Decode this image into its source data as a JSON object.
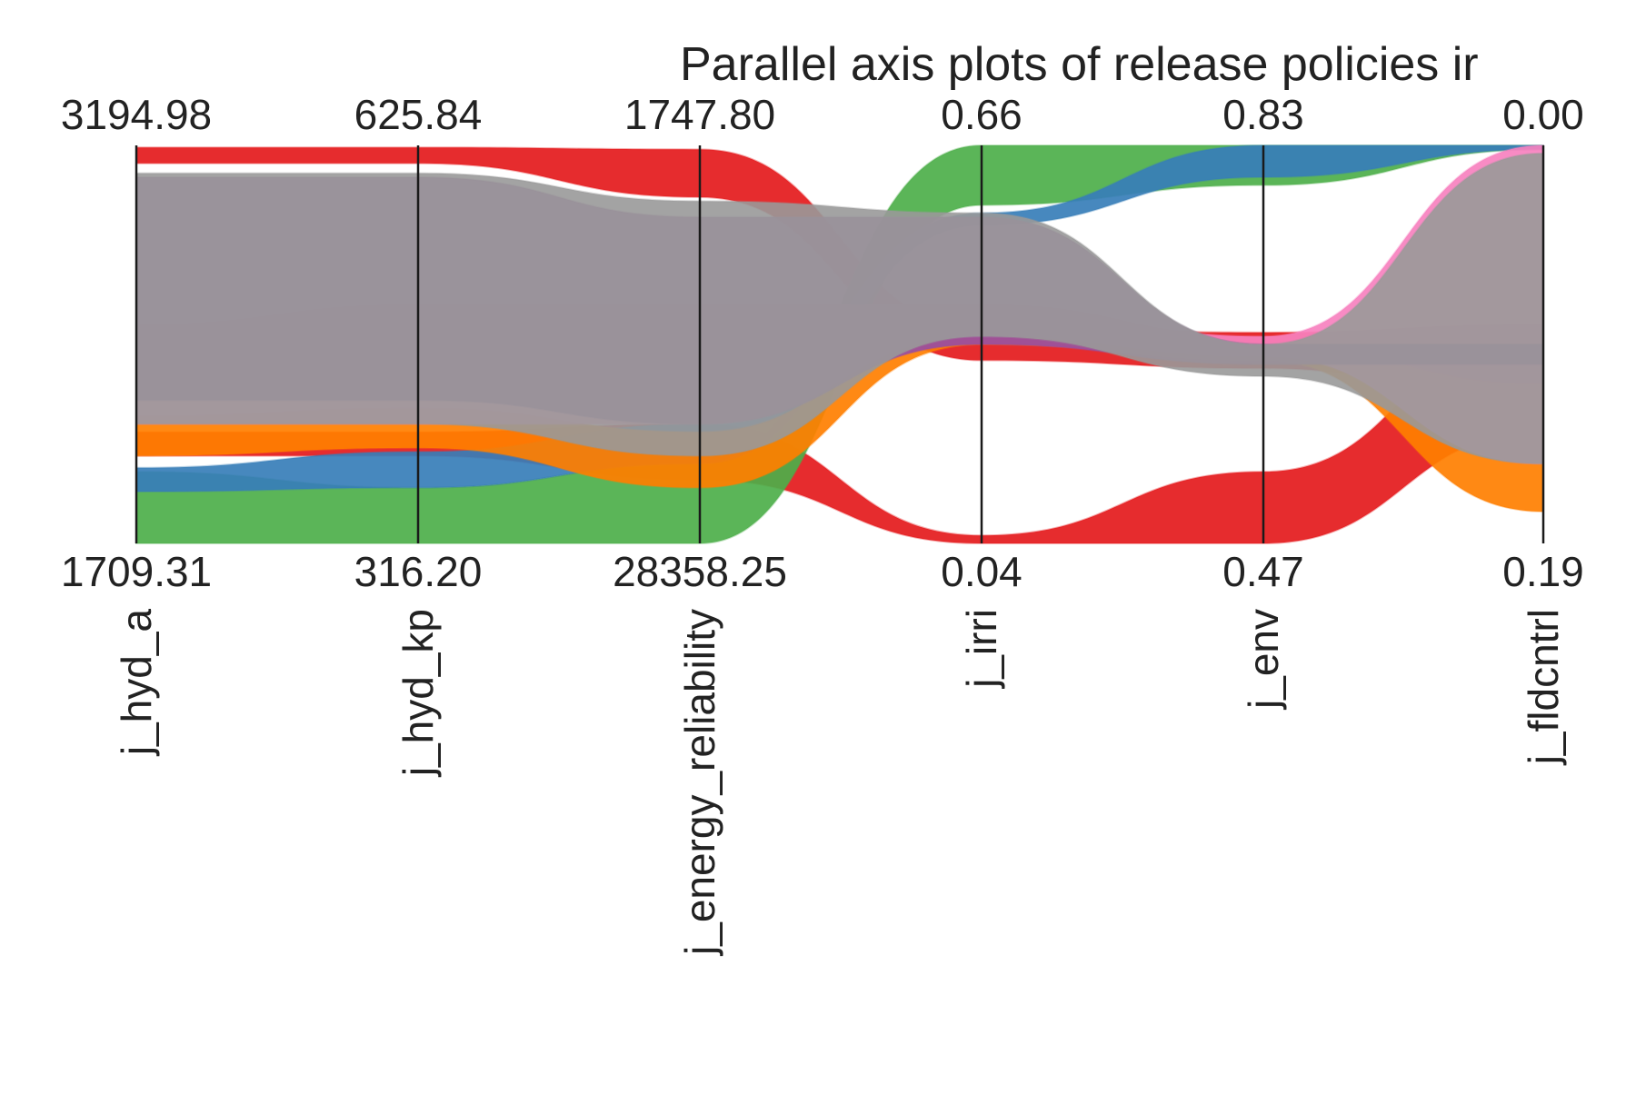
{
  "chart_data": {
    "type": "parallel-coordinates",
    "title": "Parallel axis plots of release policies ir",
    "axes": [
      {
        "name": "j_hyd_a",
        "top": "3194.98",
        "bottom": "1709.31"
      },
      {
        "name": "j_hyd_kp",
        "top": "625.84",
        "bottom": "316.20"
      },
      {
        "name": "j_energy_reliability",
        "top": "1747.80",
        "bottom": "28358.25"
      },
      {
        "name": "j_irri",
        "top": "0.66",
        "bottom": "0.04"
      },
      {
        "name": "j_env",
        "top": "0.83",
        "bottom": "0.47"
      },
      {
        "name": "j_fldcntrl",
        "top": "0.00",
        "bottom": "0.19"
      }
    ],
    "series": [
      {
        "color": "#e41a1c",
        "bands": [
          {
            "lo": 0.955,
            "hi": 0.995
          },
          {
            "lo": 0.955,
            "hi": 0.995
          },
          {
            "lo": 0.87,
            "hi": 0.99
          },
          {
            "lo": 0.46,
            "hi": 0.54
          },
          {
            "lo": 0.44,
            "hi": 0.53
          },
          {
            "lo": 0.35,
            "hi": 0.55
          }
        ]
      },
      {
        "color": "#e41a1c",
        "bands": [
          {
            "lo": 0.22,
            "hi": 0.28
          },
          {
            "lo": 0.22,
            "hi": 0.28
          },
          {
            "lo": 0.16,
            "hi": 0.3
          },
          {
            "lo": 0.0,
            "hi": 0.02
          },
          {
            "lo": 0.0,
            "hi": 0.18
          },
          {
            "lo": 0.28,
            "hi": 0.55
          }
        ]
      },
      {
        "color": "#4daf4a",
        "bands": [
          {
            "lo": 0.0,
            "hi": 0.18
          },
          {
            "lo": 0.0,
            "hi": 0.14
          },
          {
            "lo": 0.0,
            "hi": 0.2
          },
          {
            "lo": 0.85,
            "hi": 1.0
          },
          {
            "lo": 0.9,
            "hi": 1.0
          },
          {
            "lo": 0.99,
            "hi": 1.0
          }
        ]
      },
      {
        "color": "#377eb8",
        "bands": [
          {
            "lo": 0.13,
            "hi": 0.19
          },
          {
            "lo": 0.14,
            "hi": 0.23
          },
          {
            "lo": 0.2,
            "hi": 0.3
          },
          {
            "lo": 0.8,
            "hi": 0.83
          },
          {
            "lo": 0.92,
            "hi": 1.0
          },
          {
            "lo": 0.99,
            "hi": 1.0
          }
        ]
      },
      {
        "color": "#ff7f00",
        "bands": [
          {
            "lo": 0.22,
            "hi": 0.32
          },
          {
            "lo": 0.24,
            "hi": 0.34
          },
          {
            "lo": 0.14,
            "hi": 0.28
          },
          {
            "lo": 0.5,
            "hi": 0.56
          },
          {
            "lo": 0.46,
            "hi": 0.5
          },
          {
            "lo": 0.08,
            "hi": 0.4
          }
        ]
      },
      {
        "color": "#f781bf",
        "bands": [
          {
            "lo": 0.3,
            "hi": 0.55
          },
          {
            "lo": 0.3,
            "hi": 0.6
          },
          {
            "lo": 0.3,
            "hi": 0.6
          },
          {
            "lo": 0.52,
            "hi": 0.6
          },
          {
            "lo": 0.47,
            "hi": 0.52
          },
          {
            "lo": 0.2,
            "hi": 1.0
          }
        ]
      },
      {
        "color": "#984ea3",
        "bands": [
          {
            "lo": 0.36,
            "hi": 0.92
          },
          {
            "lo": 0.36,
            "hi": 0.92
          },
          {
            "lo": 0.3,
            "hi": 0.82
          },
          {
            "lo": 0.5,
            "hi": 0.82
          },
          {
            "lo": 0.45,
            "hi": 0.5
          },
          {
            "lo": 0.45,
            "hi": 0.5
          }
        ]
      },
      {
        "color": "#999999",
        "bands": [
          {
            "lo": 0.3,
            "hi": 0.93
          },
          {
            "lo": 0.3,
            "hi": 0.93
          },
          {
            "lo": 0.22,
            "hi": 0.86
          },
          {
            "lo": 0.52,
            "hi": 0.83
          },
          {
            "lo": 0.42,
            "hi": 0.5
          },
          {
            "lo": 0.2,
            "hi": 0.98
          }
        ]
      }
    ]
  }
}
